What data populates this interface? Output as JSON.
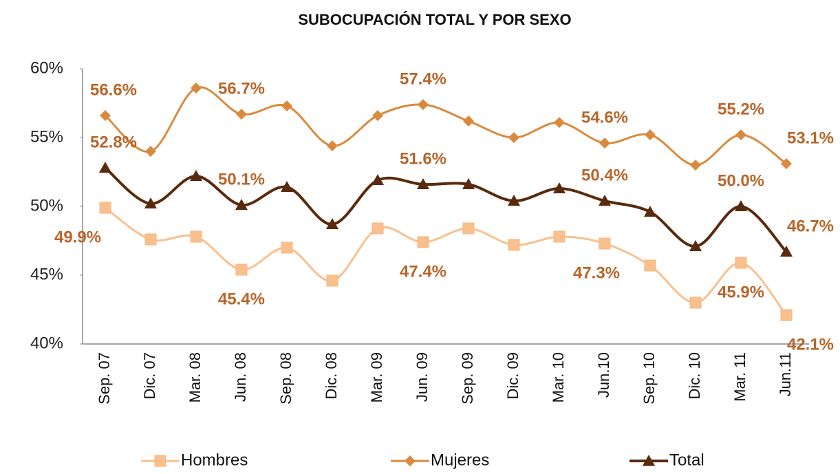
{
  "chart_data": {
    "type": "line",
    "title": "SUBOCUPACIÓN TOTAL Y POR SEXO",
    "categories": [
      "Sep. 07",
      "Dic. 07",
      "Mar. 08",
      "Jun. 08",
      "Sep. 08",
      "Dic. 08",
      "Mar. 09",
      "Jun. 09",
      "Sep. 09",
      "Dic. 09",
      "Mar. 10",
      "Jun.10",
      "Sep. 10",
      "Dic. 10",
      "Mar. 11",
      "Jun.11"
    ],
    "series": [
      {
        "name": "Hombres",
        "color": "#f9c08f",
        "marker": "square",
        "values": [
          49.9,
          47.6,
          47.8,
          45.4,
          47.0,
          44.6,
          48.4,
          47.4,
          48.4,
          47.2,
          47.8,
          47.3,
          45.7,
          43.0,
          45.9,
          42.1
        ],
        "value_labels": [
          "49.9%",
          null,
          null,
          "45.4%",
          null,
          null,
          null,
          "47.4%",
          null,
          null,
          null,
          "47.3%",
          null,
          null,
          "45.9%",
          "42.1%"
        ]
      },
      {
        "name": "Mujeres",
        "color": "#d98a3e",
        "marker": "diamond",
        "values": [
          56.6,
          54.0,
          58.6,
          56.7,
          57.3,
          54.4,
          56.6,
          57.4,
          56.2,
          55.0,
          56.1,
          54.6,
          55.2,
          53.0,
          55.2,
          53.1
        ],
        "value_labels": [
          "56.6%",
          null,
          null,
          "56.7%",
          null,
          null,
          null,
          "57.4%",
          null,
          null,
          null,
          "54.6%",
          null,
          null,
          "55.2%",
          "53.1%"
        ]
      },
      {
        "name": "Total",
        "color": "#5a2a0c",
        "marker": "triangle",
        "values": [
          52.8,
          50.2,
          52.2,
          50.1,
          51.4,
          48.7,
          51.9,
          51.6,
          51.6,
          50.4,
          51.3,
          50.4,
          49.6,
          47.1,
          50.0,
          46.7
        ],
        "value_labels": [
          "52.8%",
          null,
          null,
          "50.1%",
          null,
          null,
          null,
          "51.6%",
          null,
          null,
          null,
          "50.4%",
          null,
          null,
          "50.0%",
          "46.7%"
        ]
      }
    ],
    "ylim": [
      40,
      60
    ],
    "yticks": [
      {
        "value": 40,
        "label": "40%"
      },
      {
        "value": 45,
        "label": "45%"
      },
      {
        "value": 50,
        "label": "50%"
      },
      {
        "value": 55,
        "label": "55%"
      },
      {
        "value": 60,
        "label": "60%"
      }
    ],
    "grid": false,
    "legend": "bottom"
  }
}
